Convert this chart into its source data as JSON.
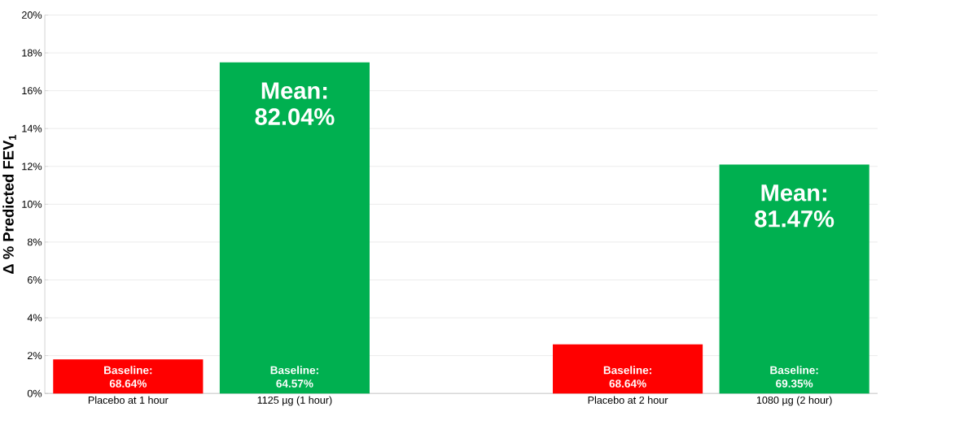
{
  "chart_data": {
    "type": "bar",
    "ylabel": "Δ % Predicted FEV$_{1}$",
    "categories": [
      "Placebo at 1 hour",
      "1125 µg (1 hour)",
      null,
      "Placebo at 2 hour",
      "1080 µg (2 hour)"
    ],
    "values": [
      1.8,
      17.5,
      null,
      2.6,
      12.1
    ],
    "colors": [
      "#ff0000",
      "#00b050",
      null,
      "#ff0000",
      "#00b050"
    ],
    "ylim": [
      0,
      20
    ],
    "yticks": [
      {
        "value": 0,
        "label": "0%"
      },
      {
        "value": 2,
        "label": "2%"
      },
      {
        "value": 4,
        "label": "4%"
      },
      {
        "value": 6,
        "label": "6%"
      },
      {
        "value": 8,
        "label": "8%"
      },
      {
        "value": 10,
        "label": "10%"
      },
      {
        "value": 12,
        "label": "12%"
      },
      {
        "value": 14,
        "label": "14%"
      },
      {
        "value": 16,
        "label": "16%"
      },
      {
        "value": 18,
        "label": "18%"
      },
      {
        "value": 20,
        "label": "20%"
      }
    ],
    "grid": "y",
    "annotations": [
      "Mean: 82.04%",
      "Mean: 81.47%",
      "Baseline: 68.64%",
      "Baseline: 64.57%",
      "Baseline: 68.64%",
      "Baseline: 69.35%"
    ]
  }
}
